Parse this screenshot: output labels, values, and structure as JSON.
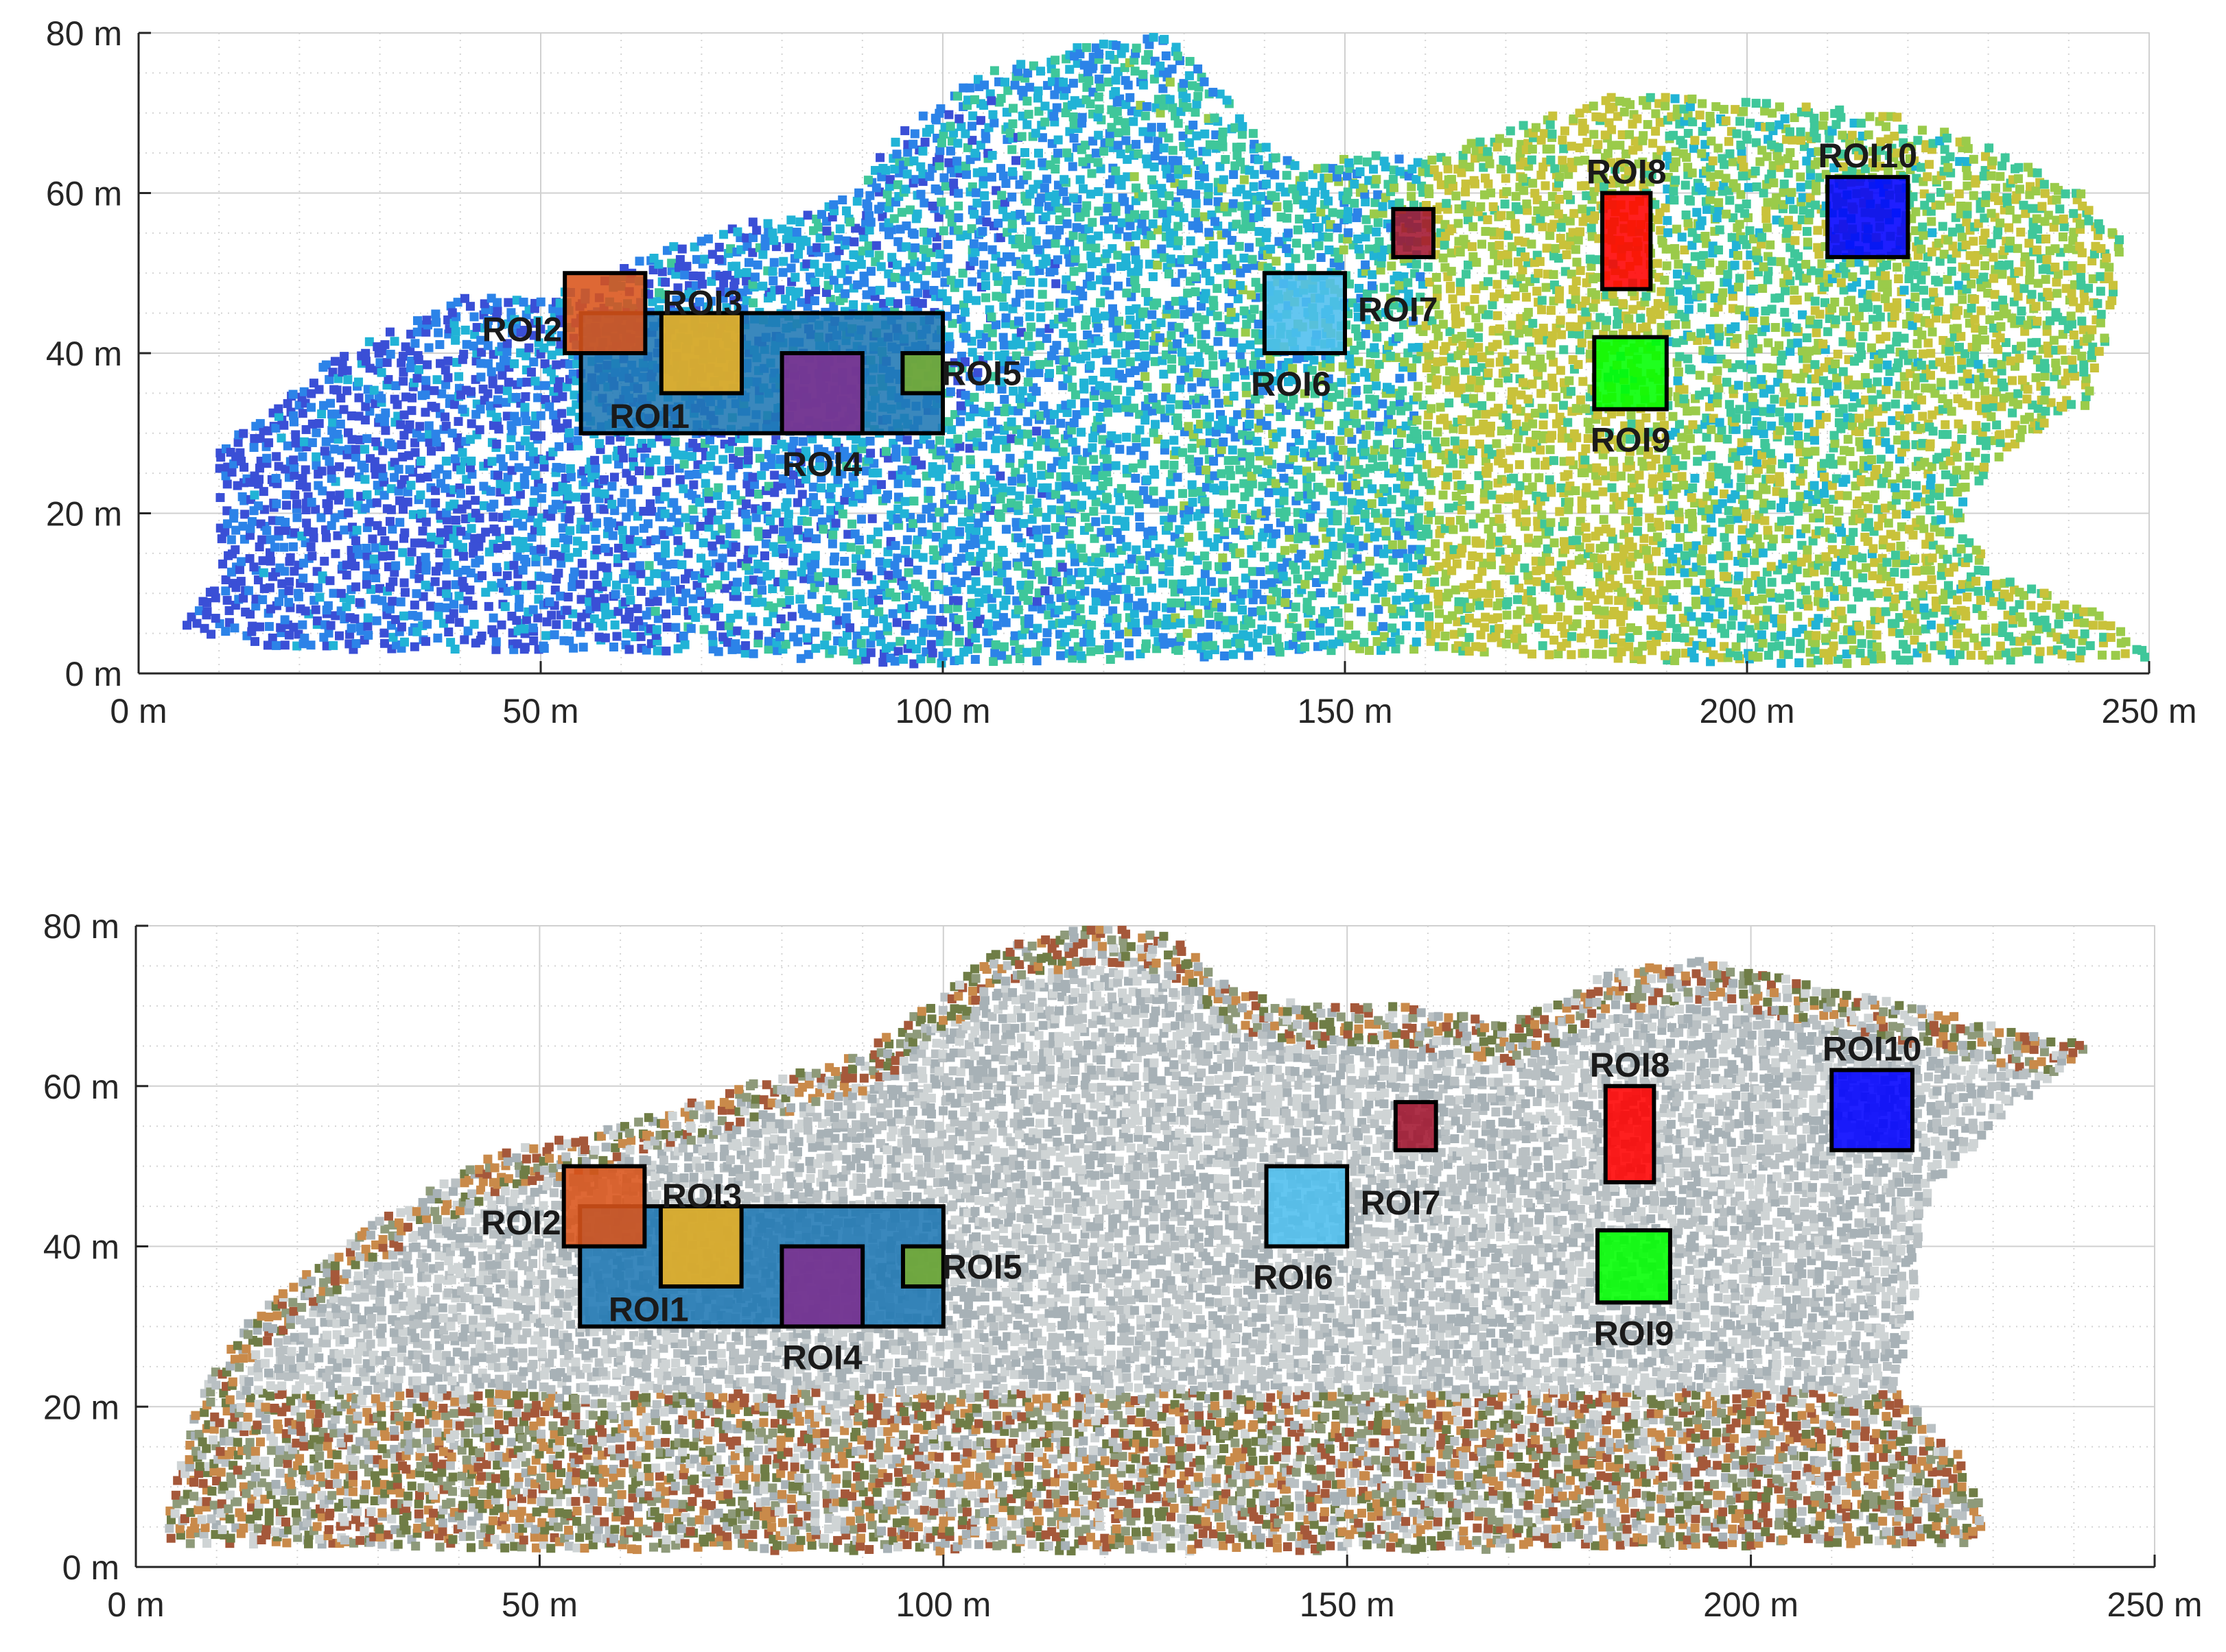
{
  "chart_data": [
    {
      "type": "scatter",
      "variant": "point-cloud-intensity",
      "colormap": [
        "#3a4fd6",
        "#2c83e8",
        "#21b3d6",
        "#3fc79a",
        "#9acb4a",
        "#c9c23a"
      ],
      "xlim": [
        0,
        250
      ],
      "ylim": [
        0,
        80
      ],
      "xticks": [
        0,
        50,
        100,
        150,
        200,
        250
      ],
      "yticks": [
        0,
        20,
        40,
        60,
        80
      ],
      "xtick_labels": [
        "0 m",
        "50 m",
        "100 m",
        "150 m",
        "200 m",
        "250 m"
      ],
      "ytick_labels": [
        "0 m",
        "20 m",
        "40 m",
        "60 m",
        "80 m"
      ],
      "grid": true,
      "outline": [
        [
          5,
          5
        ],
        [
          10,
          12
        ],
        [
          10,
          28
        ],
        [
          25,
          40
        ],
        [
          40,
          47
        ],
        [
          55,
          48
        ],
        [
          65,
          53
        ],
        [
          78,
          57
        ],
        [
          88,
          60
        ],
        [
          95,
          68
        ],
        [
          105,
          75
        ],
        [
          115,
          78
        ],
        [
          127,
          80
        ],
        [
          133,
          75
        ],
        [
          138,
          68
        ],
        [
          145,
          63
        ],
        [
          152,
          65
        ],
        [
          160,
          64
        ],
        [
          170,
          68
        ],
        [
          182,
          72
        ],
        [
          195,
          72
        ],
        [
          205,
          71
        ],
        [
          218,
          70
        ],
        [
          232,
          65
        ],
        [
          242,
          60
        ],
        [
          247,
          55
        ],
        [
          245,
          43
        ],
        [
          242,
          33
        ],
        [
          232,
          28
        ],
        [
          226,
          18
        ],
        [
          232,
          12
        ],
        [
          244,
          8
        ],
        [
          250,
          2
        ],
        [
          200,
          1
        ],
        [
          160,
          3
        ],
        [
          100,
          1
        ],
        [
          60,
          3
        ],
        [
          20,
          3
        ],
        [
          5,
          5
        ]
      ],
      "regions": [
        {
          "name": "ROI1",
          "x": [
            55,
            100
          ],
          "y": [
            30,
            45
          ],
          "color": "#1f77b4"
        },
        {
          "name": "ROI2",
          "x": [
            53,
            63
          ],
          "y": [
            40,
            50
          ],
          "color": "#d95319"
        },
        {
          "name": "ROI3",
          "x": [
            65,
            75
          ],
          "y": [
            35,
            45
          ],
          "color": "#edb120"
        },
        {
          "name": "ROI4",
          "x": [
            80,
            90
          ],
          "y": [
            30,
            40
          ],
          "color": "#7e2f8e"
        },
        {
          "name": "ROI5",
          "x": [
            95,
            100
          ],
          "y": [
            35,
            40
          ],
          "color": "#77ac30"
        },
        {
          "name": "ROI6",
          "x": [
            140,
            150
          ],
          "y": [
            40,
            50
          ],
          "color": "#4dbeee"
        },
        {
          "name": "ROI7",
          "x": [
            156,
            161
          ],
          "y": [
            52,
            58
          ],
          "color": "#a2142f"
        },
        {
          "name": "ROI8",
          "x": [
            182,
            188
          ],
          "y": [
            48,
            60
          ],
          "color": "#ff0000"
        },
        {
          "name": "ROI9",
          "x": [
            181,
            190
          ],
          "y": [
            33,
            42
          ],
          "color": "#00ff00"
        },
        {
          "name": "ROI10",
          "x": [
            210,
            220
          ],
          "y": [
            52,
            62
          ],
          "color": "#0000ff"
        }
      ]
    },
    {
      "type": "scatter",
      "variant": "point-cloud-rgb",
      "colormap": [
        "#b9c0c3",
        "#a7b1b6",
        "#cfd4d5",
        "#8e9a7a",
        "#6f7d46",
        "#a5583a",
        "#c98a4a"
      ],
      "xlim": [
        0,
        250
      ],
      "ylim": [
        0,
        80
      ],
      "xticks": [
        0,
        50,
        100,
        150,
        200,
        250
      ],
      "yticks": [
        0,
        20,
        40,
        60,
        80
      ],
      "xtick_labels": [
        "0 m",
        "50 m",
        "100 m",
        "150 m",
        "200 m",
        "250 m"
      ],
      "ytick_labels": [
        "0 m",
        "20 m",
        "40 m",
        "60 m",
        "80 m"
      ],
      "grid": true,
      "outline": [
        [
          3,
          3
        ],
        [
          8,
          22
        ],
        [
          15,
          32
        ],
        [
          28,
          42
        ],
        [
          45,
          52
        ],
        [
          60,
          55
        ],
        [
          75,
          60
        ],
        [
          90,
          64
        ],
        [
          98,
          70
        ],
        [
          108,
          78
        ],
        [
          118,
          80
        ],
        [
          128,
          79
        ],
        [
          136,
          72
        ],
        [
          145,
          70
        ],
        [
          158,
          70
        ],
        [
          170,
          68
        ],
        [
          175,
          70
        ],
        [
          182,
          74
        ],
        [
          195,
          76
        ],
        [
          210,
          72
        ],
        [
          225,
          69
        ],
        [
          242,
          65
        ],
        [
          232,
          57
        ],
        [
          222,
          47
        ],
        [
          220,
          32
        ],
        [
          218,
          22
        ],
        [
          226,
          14
        ],
        [
          229,
          6
        ],
        [
          228,
          3
        ],
        [
          150,
          2
        ],
        [
          60,
          2
        ],
        [
          3,
          3
        ]
      ],
      "regions": [
        {
          "name": "ROI1",
          "x": [
            55,
            100
          ],
          "y": [
            30,
            45
          ],
          "color": "#1f77b4"
        },
        {
          "name": "ROI2",
          "x": [
            53,
            63
          ],
          "y": [
            40,
            50
          ],
          "color": "#d95319"
        },
        {
          "name": "ROI3",
          "x": [
            65,
            75
          ],
          "y": [
            35,
            45
          ],
          "color": "#edb120"
        },
        {
          "name": "ROI4",
          "x": [
            80,
            90
          ],
          "y": [
            30,
            40
          ],
          "color": "#7e2f8e"
        },
        {
          "name": "ROI5",
          "x": [
            95,
            100
          ],
          "y": [
            35,
            40
          ],
          "color": "#77ac30"
        },
        {
          "name": "ROI6",
          "x": [
            140,
            150
          ],
          "y": [
            40,
            50
          ],
          "color": "#4dbeee"
        },
        {
          "name": "ROI7",
          "x": [
            156,
            161
          ],
          "y": [
            52,
            58
          ],
          "color": "#a2142f"
        },
        {
          "name": "ROI8",
          "x": [
            182,
            188
          ],
          "y": [
            48,
            60
          ],
          "color": "#ff0000"
        },
        {
          "name": "ROI9",
          "x": [
            181,
            190
          ],
          "y": [
            33,
            42
          ],
          "color": "#00ff00"
        },
        {
          "name": "ROI10",
          "x": [
            210,
            220
          ],
          "y": [
            52,
            62
          ],
          "color": "#0000ff"
        }
      ]
    }
  ]
}
